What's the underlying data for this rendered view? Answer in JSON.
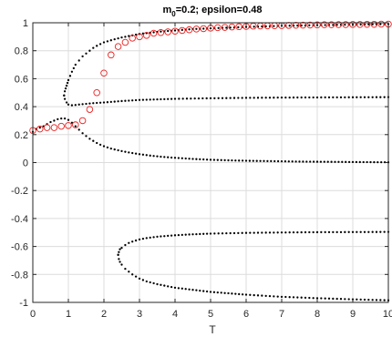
{
  "chart_data": {
    "type": "scatter",
    "title": "m",
    "title_subscript": "0",
    "title_rest": "=0.2; epsilon=0.48",
    "xlabel": "T",
    "ylabel": "",
    "xlim": [
      0,
      10
    ],
    "ylim": [
      -1,
      1
    ],
    "xticks": [
      0,
      1,
      2,
      3,
      4,
      5,
      6,
      7,
      8,
      9,
      10
    ],
    "yticks": [
      -1,
      -0.8,
      -0.6,
      -0.4,
      -0.2,
      0,
      0.2,
      0.4,
      0.6,
      0.8,
      1
    ],
    "xtick_labels": [
      "0",
      "1",
      "2",
      "3",
      "4",
      "5",
      "6",
      "7",
      "8",
      "9",
      "10"
    ],
    "ytick_labels": [
      "-1",
      "-0.8",
      "-0.6",
      "-0.4",
      "-0.2",
      "0",
      "0.2",
      "0.4",
      "0.6",
      "0.8",
      "1"
    ],
    "grid": true,
    "colors": {
      "dots": "#000000",
      "circles": "#e8201f",
      "grid": "#dcdcdc",
      "axes": "#262626"
    },
    "series": [
      {
        "style": "black-dots",
        "x": [
          0.0,
          0.1,
          0.2,
          0.3,
          0.4,
          0.5,
          0.6,
          0.7,
          0.8,
          0.9,
          1.0,
          1.1,
          1.2,
          1.3,
          1.4,
          1.5,
          1.6,
          1.7,
          1.8,
          1.9,
          2.0,
          2.2,
          2.4,
          2.6,
          2.8,
          3.0,
          3.3,
          3.6,
          4.0,
          4.5,
          5.0,
          5.5,
          6.0,
          6.5,
          7.0,
          7.5,
          8.0,
          8.5,
          9.0,
          9.5,
          10.0
        ],
        "y": [
          0.22,
          0.24,
          0.25,
          0.26,
          0.275,
          0.29,
          0.3,
          0.31,
          0.315,
          0.315,
          0.305,
          0.285,
          0.26,
          0.235,
          0.21,
          0.19,
          0.17,
          0.155,
          0.14,
          0.128,
          0.117,
          0.1,
          0.088,
          0.077,
          0.068,
          0.06,
          0.05,
          0.042,
          0.034,
          0.026,
          0.02,
          0.016,
          0.013,
          0.011,
          0.009,
          0.007,
          0.006,
          0.005,
          0.004,
          0.003,
          0.002
        ]
      },
      {
        "style": "black-dots",
        "x": [
          0.88,
          0.9,
          0.95,
          1.0,
          1.1,
          1.2,
          1.3,
          1.5,
          1.7,
          2.0,
          2.5,
          3.0,
          3.5,
          4.0,
          5.0,
          6.0,
          7.0,
          8.0,
          9.0,
          10.0
        ],
        "y": [
          0.48,
          0.455,
          0.43,
          0.415,
          0.41,
          0.412,
          0.415,
          0.42,
          0.425,
          0.43,
          0.44,
          0.448,
          0.452,
          0.456,
          0.46,
          0.463,
          0.465,
          0.466,
          0.467,
          0.468
        ]
      },
      {
        "style": "black-dots",
        "x": [
          0.88,
          0.9,
          0.95,
          1.0,
          1.05,
          1.1,
          1.2,
          1.3,
          1.4,
          1.5,
          1.6,
          1.7,
          1.8,
          2.0,
          2.2,
          2.5,
          3.0,
          3.5,
          4.0,
          4.5,
          5.0,
          6.0,
          7.0,
          8.0,
          9.0,
          10.0
        ],
        "y": [
          0.48,
          0.51,
          0.55,
          0.59,
          0.62,
          0.65,
          0.7,
          0.73,
          0.76,
          0.78,
          0.8,
          0.82,
          0.835,
          0.86,
          0.875,
          0.895,
          0.92,
          0.935,
          0.945,
          0.955,
          0.96,
          0.97,
          0.978,
          0.983,
          0.987,
          0.99
        ]
      },
      {
        "style": "black-dots",
        "x": [
          2.4,
          2.42,
          2.45,
          2.5,
          2.6,
          2.7,
          2.8,
          3.0,
          3.2,
          3.5,
          4.0,
          4.5,
          5.0,
          6.0,
          7.0,
          8.0,
          9.0,
          10.0
        ],
        "y": [
          -0.66,
          -0.64,
          -0.62,
          -0.61,
          -0.59,
          -0.575,
          -0.565,
          -0.55,
          -0.54,
          -0.53,
          -0.52,
          -0.513,
          -0.508,
          -0.503,
          -0.5,
          -0.498,
          -0.497,
          -0.496
        ]
      },
      {
        "style": "black-dots",
        "x": [
          2.4,
          2.42,
          2.45,
          2.5,
          2.6,
          2.7,
          2.8,
          3.0,
          3.2,
          3.5,
          4.0,
          4.5,
          5.0,
          5.5,
          6.0,
          7.0,
          8.0,
          9.0,
          10.0
        ],
        "y": [
          -0.66,
          -0.69,
          -0.71,
          -0.73,
          -0.76,
          -0.78,
          -0.8,
          -0.83,
          -0.85,
          -0.87,
          -0.895,
          -0.91,
          -0.925,
          -0.935,
          -0.945,
          -0.96,
          -0.97,
          -0.978,
          -0.985
        ]
      },
      {
        "style": "red-circles",
        "x": [
          0.0,
          0.2,
          0.4,
          0.6,
          0.8,
          1.0,
          1.2,
          1.4,
          1.6,
          1.8,
          2.0,
          2.2,
          2.4,
          2.6,
          2.8,
          3.0,
          3.2,
          3.4,
          3.6,
          3.8,
          4.0,
          4.2,
          4.4,
          4.6,
          4.8,
          5.0,
          5.2,
          5.4,
          5.6,
          5.8,
          6.0,
          6.2,
          6.4,
          6.6,
          6.8,
          7.0,
          7.2,
          7.4,
          7.6,
          7.8,
          8.0,
          8.2,
          8.4,
          8.6,
          8.8,
          9.0,
          9.2,
          9.4,
          9.6,
          9.8,
          10.0
        ],
        "y": [
          0.23,
          0.24,
          0.25,
          0.25,
          0.26,
          0.265,
          0.27,
          0.3,
          0.38,
          0.5,
          0.64,
          0.77,
          0.83,
          0.86,
          0.89,
          0.9,
          0.91,
          0.925,
          0.93,
          0.935,
          0.94,
          0.945,
          0.95,
          0.955,
          0.958,
          0.962,
          0.965,
          0.967,
          0.97,
          0.972,
          0.974,
          0.976,
          0.977,
          0.978,
          0.979,
          0.98,
          0.981,
          0.982,
          0.983,
          0.984,
          0.985,
          0.986,
          0.986,
          0.987,
          0.987,
          0.988,
          0.988,
          0.989,
          0.989,
          0.99,
          0.99
        ]
      }
    ]
  }
}
